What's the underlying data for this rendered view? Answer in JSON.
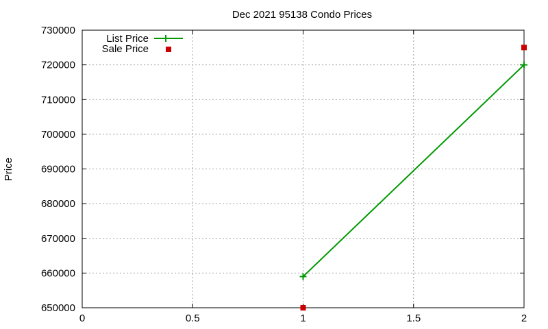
{
  "chart_data": {
    "type": "line",
    "title": "Dec 2021 95138 Condo Prices",
    "xlabel": "",
    "ylabel": "Price",
    "xlim": [
      0,
      2
    ],
    "ylim": [
      650000,
      730000
    ],
    "grid": true,
    "legend_position": "top-left",
    "x_ticks": [
      "0",
      "0.5",
      "1",
      "1.5",
      "2"
    ],
    "y_ticks": [
      "650000",
      "660000",
      "670000",
      "680000",
      "690000",
      "700000",
      "710000",
      "720000",
      "730000"
    ],
    "series": [
      {
        "name": "List Price",
        "style": "linespoints",
        "color": "#009900",
        "x": [
          1,
          2
        ],
        "values": [
          659000,
          720000
        ]
      },
      {
        "name": "Sale Price",
        "style": "points",
        "color": "#cc0000",
        "x": [
          1,
          2
        ],
        "values": [
          650000,
          725000
        ]
      }
    ]
  }
}
